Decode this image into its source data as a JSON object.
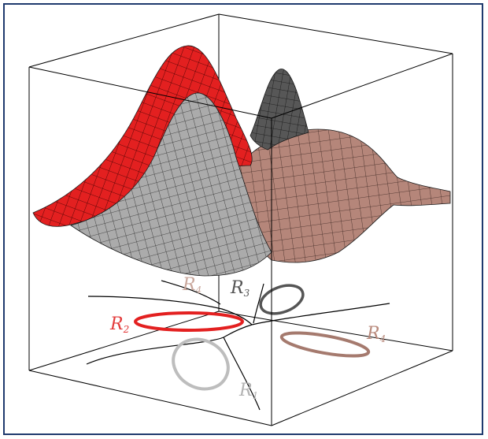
{
  "region_labels": [
    {
      "id": "r1",
      "main": "R",
      "sub": "1",
      "color": "#b3b3b3"
    },
    {
      "id": "r2",
      "main": "R",
      "sub": "2",
      "color": "#e33b3b"
    },
    {
      "id": "r3",
      "main": "R",
      "sub": "3",
      "color": "#555555"
    },
    {
      "id": "r4",
      "main": "R",
      "sub": "4",
      "color": "#b98a7c"
    },
    {
      "id": "r4b",
      "main": "R",
      "sub": "4",
      "color": "#c9a79c"
    }
  ],
  "colors": {
    "frame_border": "#1f3a6e",
    "red_surface": "#e32020",
    "gray_surface": "#a9a9a9",
    "dark_surface": "#555555",
    "brown_surface": "#b5867a",
    "mesh": "#222222",
    "box_edges": "#000000"
  }
}
